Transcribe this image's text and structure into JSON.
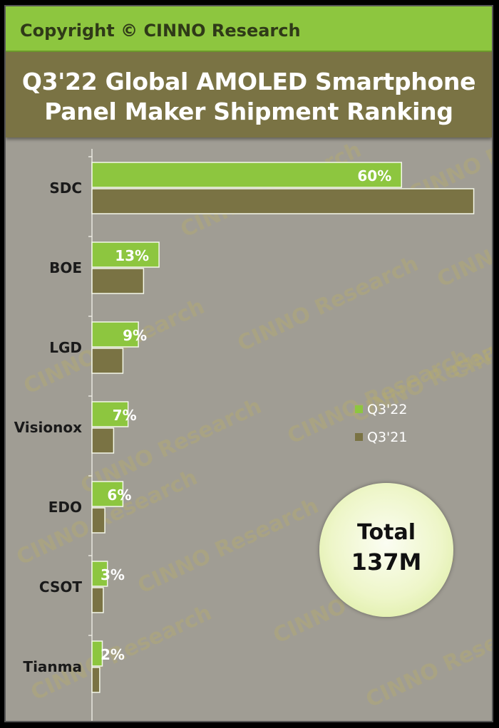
{
  "header": {
    "copyright": "Copyright © CINNO Research",
    "title_line1": "Q3'22 Global AMOLED Smartphone",
    "title_line2": "Panel Maker Shipment Ranking"
  },
  "total": {
    "label": "Total",
    "value": "137M"
  },
  "watermark_text": "CINNO Research",
  "colors": {
    "q3_22": "#8dc63f",
    "q3_21": "#7a7344",
    "background": "#a09d94",
    "header_green": "#8dc63f",
    "title_band": "#7a7344"
  },
  "chart_data": {
    "type": "bar",
    "orientation": "horizontal",
    "title": "Q3'22 Global AMOLED Smartphone Panel Maker Shipment Ranking",
    "categories": [
      "SDC",
      "BOE",
      "LGD",
      "Visionox",
      "EDO",
      "CSOT",
      "Tianma"
    ],
    "series": [
      {
        "name": "Q3'22",
        "values": [
          60,
          13,
          9,
          7,
          6,
          3,
          2
        ],
        "labels": [
          "60%",
          "13%",
          "9%",
          "7%",
          "6%",
          "3%",
          "2%"
        ]
      },
      {
        "name": "Q3'21",
        "values": [
          74,
          10,
          6,
          4.2,
          2.5,
          2.2,
          1.5
        ]
      }
    ],
    "xlim": [
      0,
      80
    ],
    "legend": {
      "position": "right-middle",
      "entries": [
        "Q3'22",
        "Q3'21"
      ]
    },
    "grid": false
  }
}
